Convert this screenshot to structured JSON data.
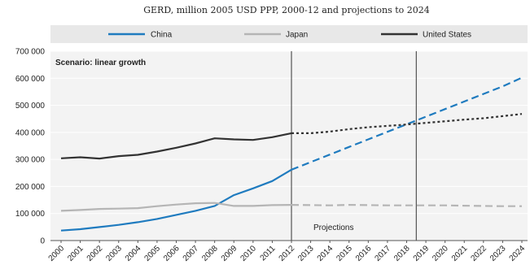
{
  "chart_data": {
    "type": "line",
    "title": "GERD, million 2005 USD PPP, 2000-12 and projections to 2024",
    "subtitle": "Scenario: linear growth",
    "xlabel": "",
    "ylabel": "",
    "annotation": "Projections",
    "x": [
      2000,
      2001,
      2002,
      2003,
      2004,
      2005,
      2006,
      2007,
      2008,
      2009,
      2010,
      2011,
      2012,
      2013,
      2014,
      2015,
      2016,
      2017,
      2018,
      2019,
      2020,
      2021,
      2022,
      2023,
      2024
    ],
    "x_tick_labels": [
      "2000",
      "2001",
      "2002",
      "2003",
      "2004",
      "2005",
      "2006",
      "2007",
      "2008",
      "2009",
      "2010",
      "2011",
      "2012",
      "2013",
      "2014",
      "2015",
      "2016",
      "2017",
      "2018",
      "2019",
      "2020",
      "2021",
      "2022",
      "2023",
      "2024"
    ],
    "ylim": [
      0,
      700000
    ],
    "y_ticks": [
      0,
      100000,
      200000,
      300000,
      400000,
      500000,
      600000,
      700000
    ],
    "y_tick_labels": [
      "0",
      "100 000",
      "200 000",
      "300 000",
      "400 000",
      "500 000",
      "600 000",
      "700 000"
    ],
    "vertical_markers": [
      2012,
      2018.5
    ],
    "grid": true,
    "legend_position": "top",
    "series": [
      {
        "name": "China",
        "color": "#1f7bbf",
        "historical": {
          "x": [
            2000,
            2001,
            2002,
            2003,
            2004,
            2005,
            2006,
            2007,
            2008,
            2009,
            2010,
            2011,
            2012
          ],
          "values": [
            37000,
            42000,
            50000,
            58000,
            68000,
            80000,
            95000,
            110000,
            128000,
            168000,
            193000,
            220000,
            262000
          ]
        },
        "projection": {
          "x": [
            2012,
            2013,
            2014,
            2015,
            2016,
            2017,
            2018,
            2019,
            2020,
            2021,
            2022,
            2023,
            2024
          ],
          "values": [
            262000,
            290000,
            318000,
            346000,
            374000,
            402000,
            430000,
            458000,
            486000,
            514000,
            542000,
            570000,
            602000
          ]
        }
      },
      {
        "name": "Japan",
        "color": "#b5b5b5",
        "historical": {
          "x": [
            2000,
            2001,
            2002,
            2003,
            2004,
            2005,
            2006,
            2007,
            2008,
            2009,
            2010,
            2011,
            2012
          ],
          "values": [
            110000,
            113000,
            117000,
            118000,
            120000,
            127000,
            133000,
            138000,
            139000,
            128000,
            128000,
            131000,
            132000
          ]
        },
        "projection": {
          "x": [
            2012,
            2013,
            2014,
            2015,
            2016,
            2017,
            2018,
            2019,
            2020,
            2021,
            2022,
            2023,
            2024
          ],
          "values": [
            132000,
            131000,
            130000,
            132000,
            131000,
            130000,
            130000,
            130000,
            130000,
            129000,
            128000,
            127000,
            127000
          ]
        }
      },
      {
        "name": "United States",
        "color": "#333333",
        "historical": {
          "x": [
            2000,
            2001,
            2002,
            2003,
            2004,
            2005,
            2006,
            2007,
            2008,
            2009,
            2010,
            2011,
            2012
          ],
          "values": [
            304000,
            308000,
            303000,
            312000,
            317000,
            329000,
            343000,
            359000,
            378000,
            374000,
            372000,
            382000,
            397000
          ]
        },
        "projection": {
          "x": [
            2012,
            2013,
            2014,
            2015,
            2016,
            2017,
            2018,
            2019,
            2020,
            2021,
            2022,
            2023,
            2024
          ],
          "values": [
            397000,
            397000,
            403000,
            412000,
            419000,
            424000,
            429000,
            435000,
            441000,
            447000,
            452000,
            460000,
            468000
          ]
        }
      }
    ]
  }
}
